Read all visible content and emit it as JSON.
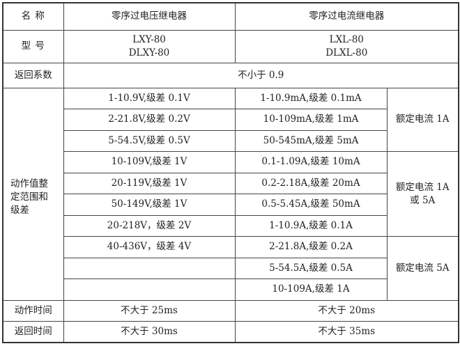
{
  "header": {
    "label": "名  称",
    "voltage": "零序过电压继电器",
    "current": "零序过电流继电器"
  },
  "model": {
    "label": "型  号",
    "voltage": [
      "LXY-80",
      "DLXY-80"
    ],
    "current": [
      "LXL-80",
      "DLXL-80"
    ]
  },
  "return_coefficient": {
    "label": "返回系数",
    "value": "不小于 0.9"
  },
  "setting": {
    "label": "动作值整定范围和级差",
    "voltage": [
      "1-10.9V,级差 0.1V",
      "2-21.8V,级差 0.2V",
      "5-54.5V,级差 0.5V",
      "10-109V,级差 1V",
      "20-119V,级差 1V",
      "50-149V,级差 1V",
      "20-218V，级差 2V",
      "40-436V，级差 4V",
      "",
      ""
    ],
    "current": [
      "1-10.9mA,级差 0.1mA",
      "10-109mA,级差 1mA",
      "50-545mA,级差 5mA",
      "0.1-1.09A,级差 10mA",
      "0.2-2.18A,级差 20mA",
      "0.5-5.45A,级差 50mA",
      "1-10.9A,级差 0.1A",
      "2-21.8A,级差 0.2A",
      "5-54.5A,级差 0.5A",
      "10-109A,级差 1A"
    ],
    "rated": [
      "额定电流 1A",
      "额定电流 1A 或 5A",
      "额定电流 5A"
    ]
  },
  "operate_time": {
    "label": "动作时间",
    "voltage": "不大于 25ms",
    "current": "不大于 20ms"
  },
  "return_time": {
    "label": "返回时间",
    "voltage": "不大于 30ms",
    "current": "不大于 35ms"
  }
}
